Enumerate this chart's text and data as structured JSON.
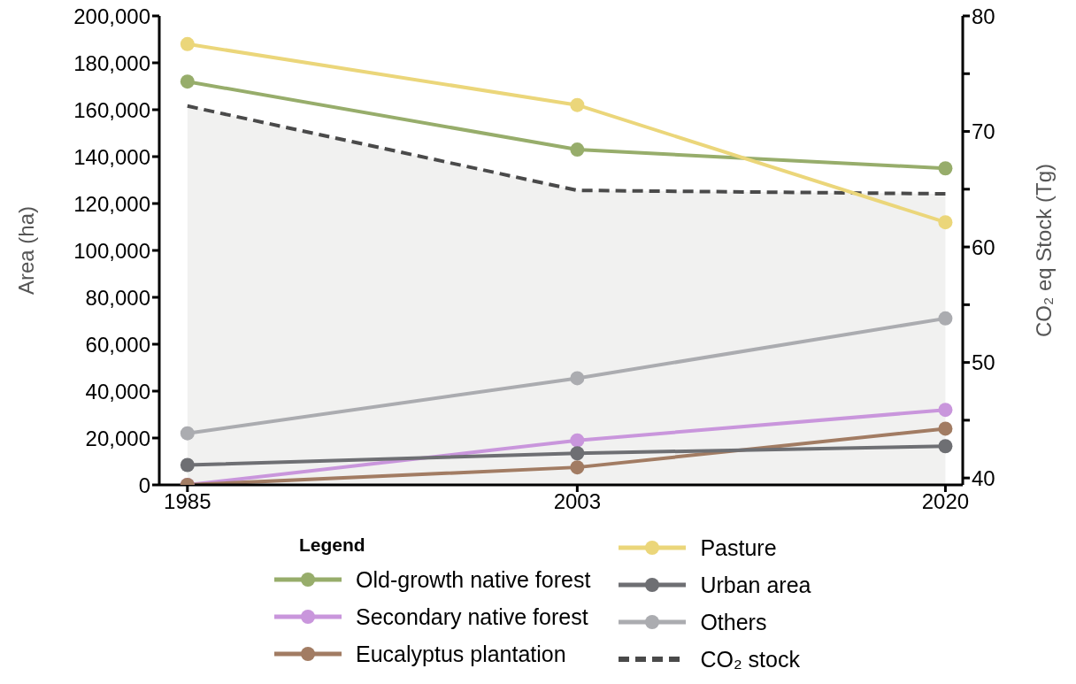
{
  "chart_data": {
    "type": "line",
    "xlabel": null,
    "ylabel": "Area (ha)",
    "y2label": "CO₂ eq Stock (Tg)",
    "legend_title": "Legend",
    "x": [
      1985,
      2003,
      2020
    ],
    "xlim": [
      1983.7,
      2020.8
    ],
    "xticks": [
      1985,
      2003,
      2020
    ],
    "ylim": [
      0,
      200000
    ],
    "yticks": [
      {
        "value": 0,
        "label": "0"
      },
      {
        "value": 20000,
        "label": "20,000"
      },
      {
        "value": 40000,
        "label": "40,000"
      },
      {
        "value": 60000,
        "label": "60,000"
      },
      {
        "value": 80000,
        "label": "80,000"
      },
      {
        "value": 100000,
        "label": "100,000"
      },
      {
        "value": 120000,
        "label": "120,000"
      },
      {
        "value": 140000,
        "label": "140,000"
      },
      {
        "value": 160000,
        "label": "160,000"
      },
      {
        "value": 180000,
        "label": "180,000"
      },
      {
        "value": 200000,
        "label": "200,000"
      }
    ],
    "y2lim": [
      39.4,
      80
    ],
    "y2ticks": [
      40,
      {
        "value": 45,
        "label": null
      },
      50,
      {
        "value": 55,
        "label": null
      },
      60,
      {
        "value": 65,
        "label": null
      },
      70,
      {
        "value": 75,
        "label": null
      },
      80
    ],
    "marker": "circle",
    "legend": "bottom",
    "series": [
      {
        "name": "Old-growth native forest",
        "color": "#97ad6b",
        "values": [
          172000,
          143000,
          135000
        ]
      },
      {
        "name": "Secondary native forest",
        "color": "#c996dc",
        "values": [
          0,
          19000,
          32000
        ]
      },
      {
        "name": "Eucalyptus plantation",
        "color": "#a27c63",
        "values": [
          0,
          7500,
          24000
        ]
      },
      {
        "name": "Pasture",
        "color": "#ebd67a",
        "values": [
          188000,
          162000,
          112000
        ]
      },
      {
        "name": "Urban area",
        "color": "#6e6f73",
        "values": [
          8500,
          13500,
          16500
        ]
      },
      {
        "name": "Others",
        "color": "#abacb0",
        "values": [
          22000,
          45500,
          71000
        ]
      },
      {
        "name": "CO₂ stock",
        "type": "area",
        "axis": "y2",
        "color": "#4a4a4a",
        "line_style": "dashed",
        "marker": "none",
        "values": [
          72.2,
          64.9,
          64.6
        ]
      }
    ]
  }
}
